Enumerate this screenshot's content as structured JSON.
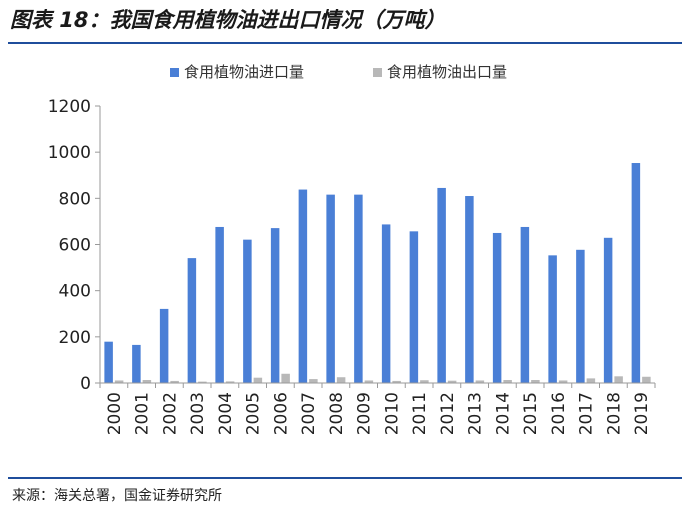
{
  "figure": {
    "title": "图表 18：我国食用植物油进出口情况（万吨）",
    "source": "来源：海关总署，国金证券研究所"
  },
  "colors": {
    "import": "#4a7fd6",
    "export": "#b8b8b8",
    "axis": "#9a9a9a",
    "rule": "#1f4e9c"
  },
  "chart_data": {
    "type": "bar",
    "title": "",
    "xlabel": "",
    "ylabel": "",
    "ylim": [
      0,
      1200
    ],
    "yticks": [
      0,
      200,
      400,
      600,
      800,
      1000,
      1200
    ],
    "grid": false,
    "legend_position": "top",
    "categories": [
      "2000",
      "2001",
      "2002",
      "2003",
      "2004",
      "2005",
      "2006",
      "2007",
      "2008",
      "2009",
      "2010",
      "2011",
      "2012",
      "2013",
      "2014",
      "2015",
      "2016",
      "2017",
      "2018",
      "2019"
    ],
    "series": [
      {
        "name": "食用植物油进口量",
        "color": "#4a7fd6",
        "values": [
          179,
          165,
          321,
          541,
          676,
          621,
          671,
          838,
          816,
          816,
          687,
          657,
          845,
          810,
          650,
          676,
          553,
          577,
          629,
          953
        ]
      },
      {
        "name": "食用植物油出口量",
        "color": "#b8b8b8",
        "values": [
          11,
          13,
          9,
          6,
          7,
          23,
          40,
          17,
          25,
          11,
          9,
          12,
          10,
          11,
          13,
          13,
          11,
          20,
          29,
          27
        ]
      }
    ]
  }
}
